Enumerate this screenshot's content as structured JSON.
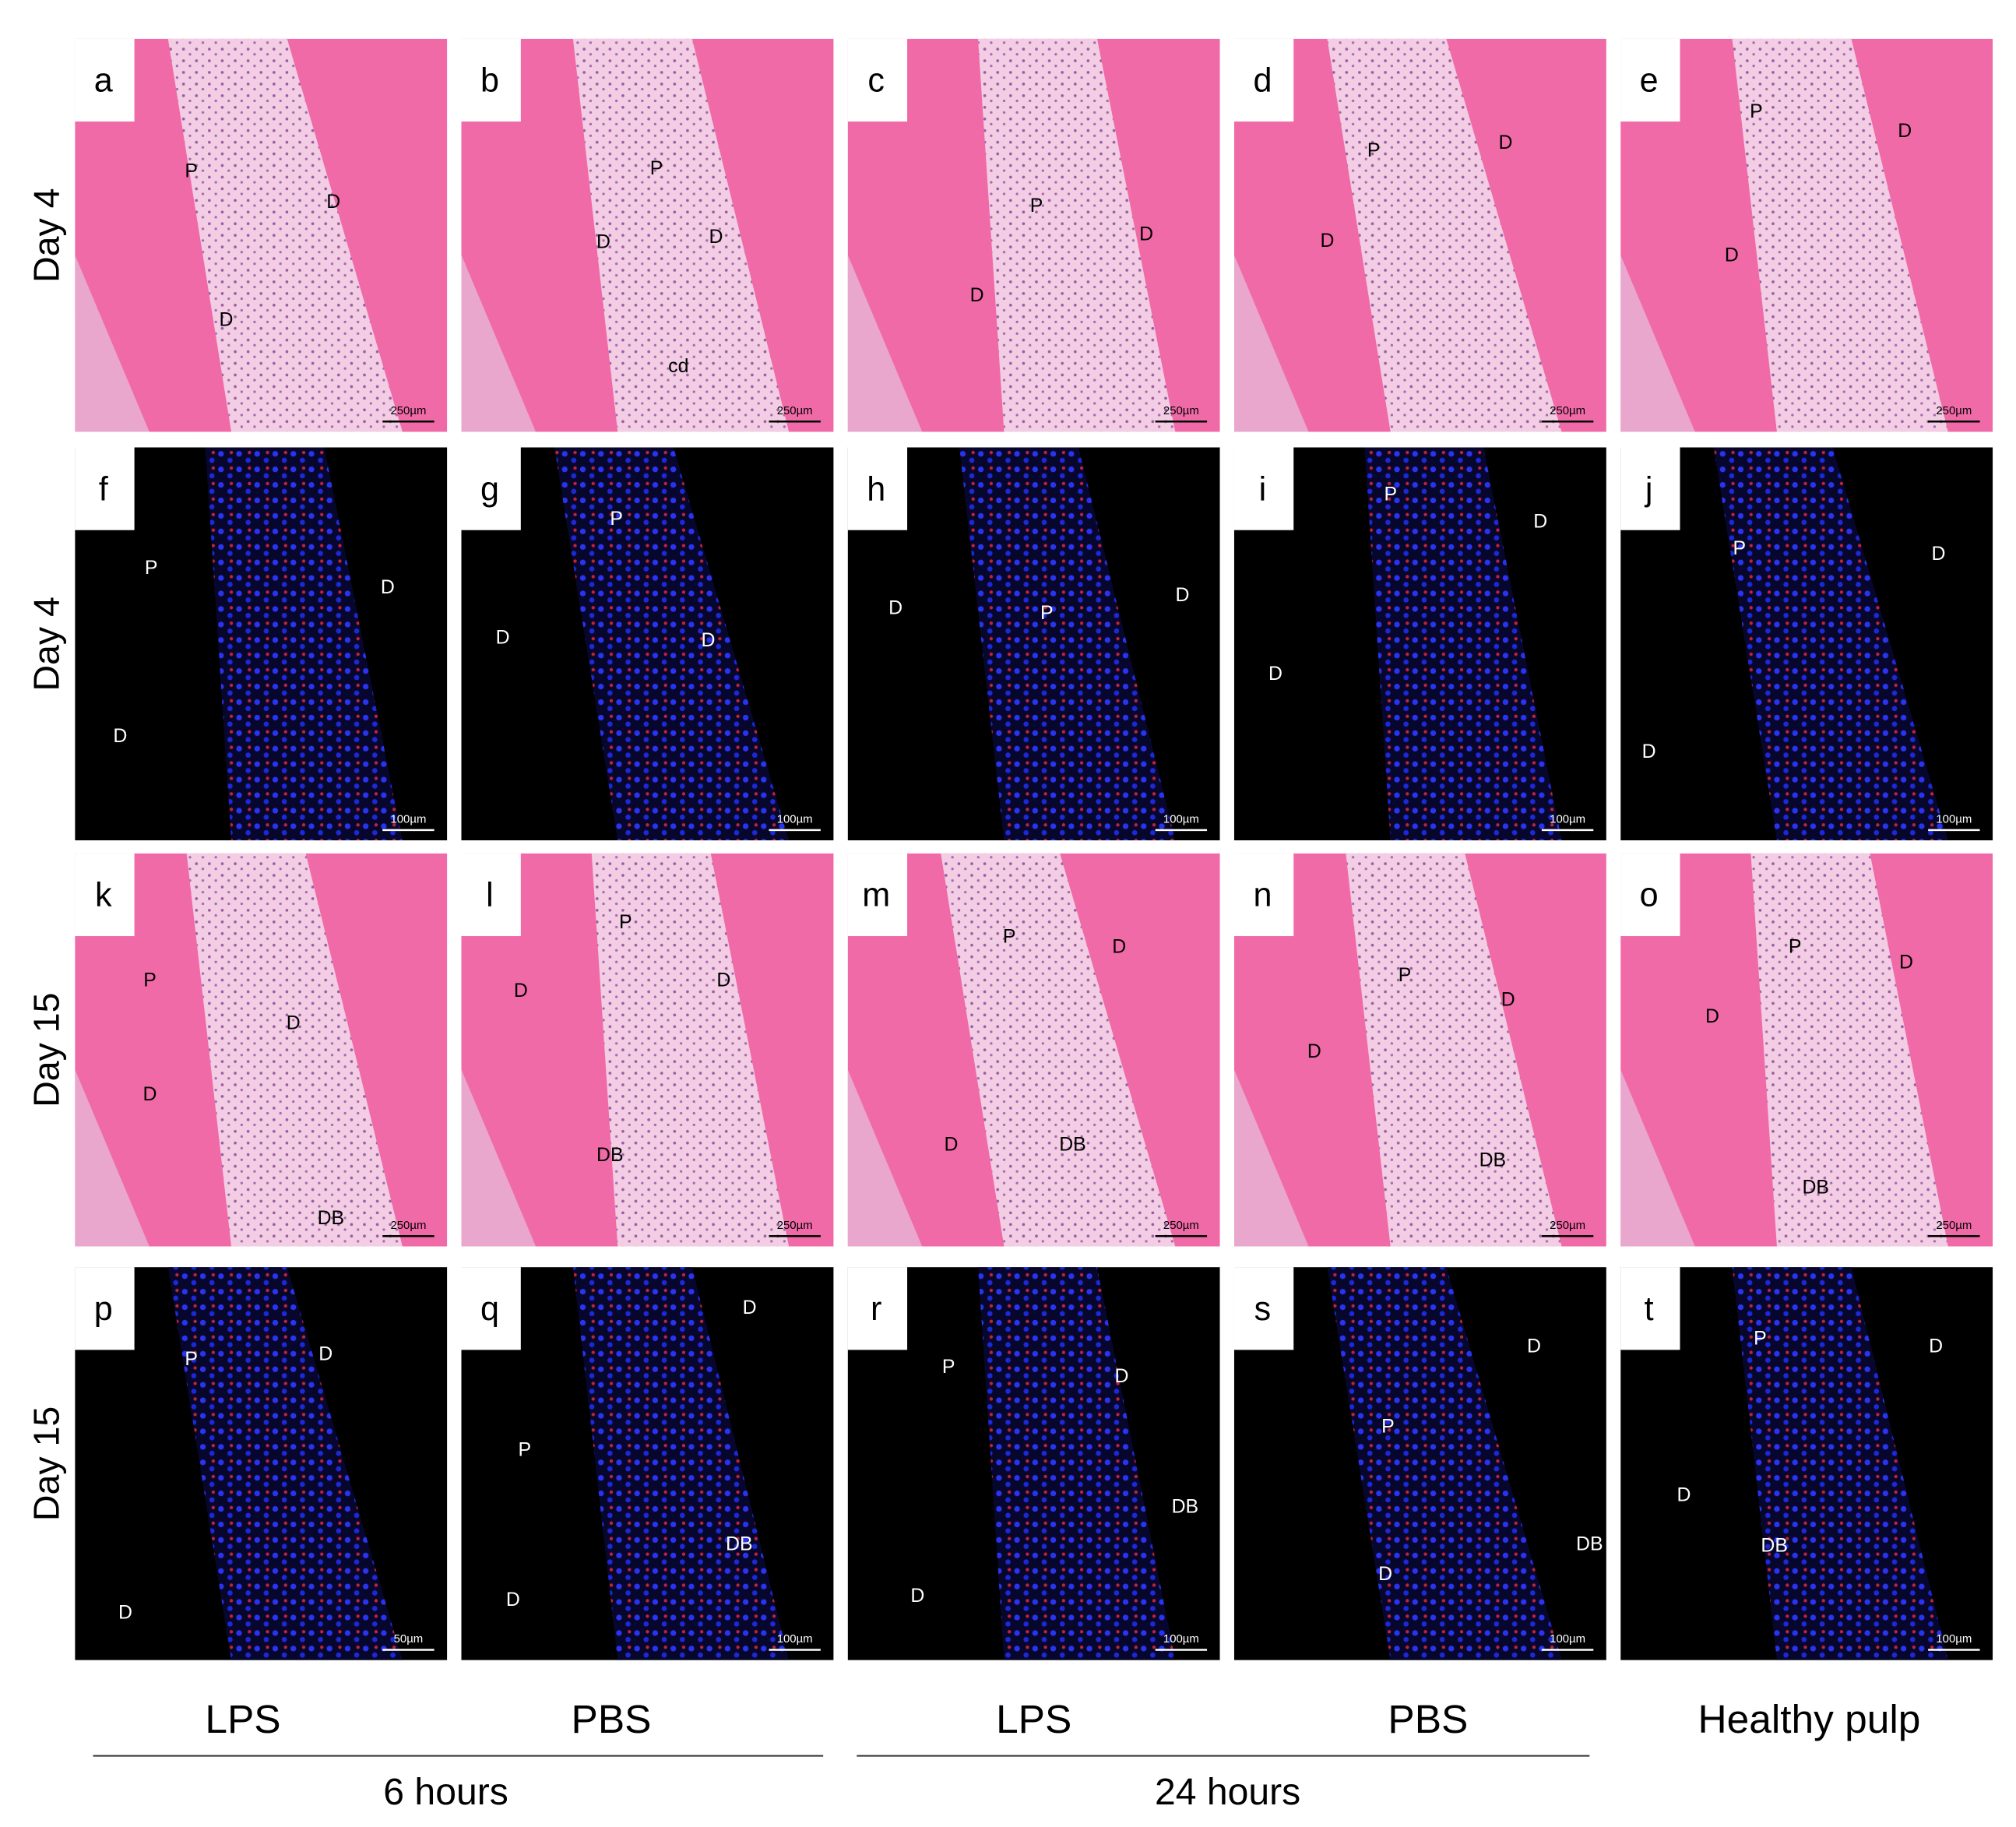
{
  "row_labels": [
    "Day 4",
    "Day 4",
    "Day 15",
    "Day 15"
  ],
  "panels": [
    {
      "letter": "a",
      "annotations": [
        "P",
        "D",
        "D"
      ],
      "scale_bar": "250µm"
    },
    {
      "letter": "b",
      "annotations": [
        "P",
        "D",
        "D",
        "cd"
      ],
      "scale_bar": "250µm"
    },
    {
      "letter": "c",
      "annotations": [
        "P",
        "D",
        "D"
      ],
      "scale_bar": "250µm"
    },
    {
      "letter": "d",
      "annotations": [
        "P",
        "D",
        "D"
      ],
      "scale_bar": "250µm"
    },
    {
      "letter": "e",
      "annotations": [
        "P",
        "D",
        "D"
      ],
      "scale_bar": "250µm"
    },
    {
      "letter": "f",
      "annotations": [
        "P",
        "D",
        "D"
      ],
      "scale_bar": "100µm"
    },
    {
      "letter": "g",
      "annotations": [
        "P",
        "D",
        "D"
      ],
      "scale_bar": "100µm"
    },
    {
      "letter": "h",
      "annotations": [
        "D",
        "P",
        "D"
      ],
      "scale_bar": "100µm"
    },
    {
      "letter": "i",
      "annotations": [
        "P",
        "D",
        "D"
      ],
      "scale_bar": "100µm"
    },
    {
      "letter": "j",
      "annotations": [
        "P",
        "D",
        "D"
      ],
      "scale_bar": "100µm"
    },
    {
      "letter": "k",
      "annotations": [
        "P",
        "D",
        "D",
        "DB"
      ],
      "scale_bar": "250µm"
    },
    {
      "letter": "l",
      "annotations": [
        "P",
        "D",
        "D",
        "DB"
      ],
      "scale_bar": "250µm"
    },
    {
      "letter": "m",
      "annotations": [
        "P",
        "D",
        "D",
        "DB"
      ],
      "scale_bar": "250µm"
    },
    {
      "letter": "n",
      "annotations": [
        "P",
        "D",
        "D",
        "DB"
      ],
      "scale_bar": "250µm"
    },
    {
      "letter": "o",
      "annotations": [
        "P",
        "D",
        "D",
        "DB"
      ],
      "scale_bar": "250µm"
    },
    {
      "letter": "p",
      "annotations": [
        "P",
        "D",
        "D"
      ],
      "scale_bar": "50µm"
    },
    {
      "letter": "q",
      "annotations": [
        "D",
        "P",
        "DB",
        "D"
      ],
      "scale_bar": "100µm"
    },
    {
      "letter": "r",
      "annotations": [
        "P",
        "D",
        "DB",
        "D"
      ],
      "scale_bar": "100µm"
    },
    {
      "letter": "s",
      "annotations": [
        "D",
        "P",
        "DB",
        "D"
      ],
      "scale_bar": "100µm"
    },
    {
      "letter": "t",
      "annotations": [
        "P",
        "D",
        "D",
        "DB"
      ],
      "scale_bar": "100µm"
    }
  ],
  "column_labels": [
    "LPS",
    "PBS",
    "LPS",
    "PBS",
    "Healthy pulp"
  ],
  "group_labels": [
    "6 hours",
    "24 hours"
  ]
}
